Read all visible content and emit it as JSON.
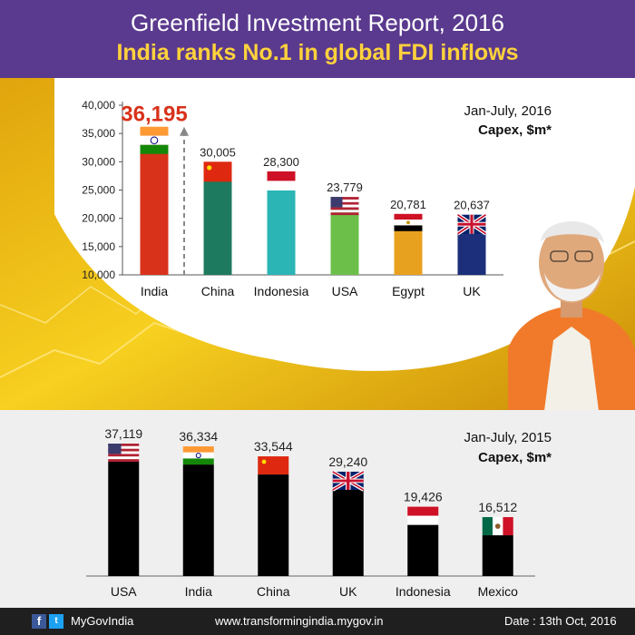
{
  "header": {
    "title": "Greenfield Investment Report, 2016",
    "subtitle": "India ranks No.1 in global FDI inflows"
  },
  "chart_data": [
    {
      "type": "bar",
      "note_period": "Jan-July, 2016",
      "note_unit": "Capex, $m*",
      "categories": [
        "India",
        "China",
        "Indonesia",
        "USA",
        "Egypt",
        "UK"
      ],
      "values": [
        36195,
        30005,
        28300,
        23779,
        20781,
        20637
      ],
      "value_labels": [
        "36,195",
        "30,005",
        "28,300",
        "23,779",
        "20,781",
        "20,637"
      ],
      "colors": [
        "#d8321a",
        "#1e7a5e",
        "#2bb5b5",
        "#6cc04a",
        "#e8a11f",
        "#1c2f7a"
      ],
      "ylim": [
        10000,
        40000
      ],
      "yticks": [
        "10,000",
        "15,000",
        "20,000",
        "25,000",
        "30,000",
        "35,000",
        "40,000"
      ],
      "highlight_color": "#d8321a"
    },
    {
      "type": "bar",
      "note_period": "Jan-July, 2015",
      "note_unit": "Capex, $m*",
      "categories": [
        "USA",
        "India",
        "China",
        "UK",
        "Indonesia",
        "Mexico"
      ],
      "values": [
        37119,
        36334,
        33544,
        29240,
        19426,
        16512
      ],
      "value_labels": [
        "37,119",
        "36,334",
        "33,544",
        "29,240",
        "19,426",
        "16,512"
      ],
      "colors": [
        "#000000",
        "#000000",
        "#000000",
        "#000000",
        "#000000",
        "#000000"
      ]
    }
  ],
  "footer": {
    "facebook_icon": "f",
    "twitter_icon": "t",
    "handle": "MyGovIndia",
    "url": "www.transformingindia.mygov.in",
    "date": "Date : 13th Oct, 2016"
  }
}
